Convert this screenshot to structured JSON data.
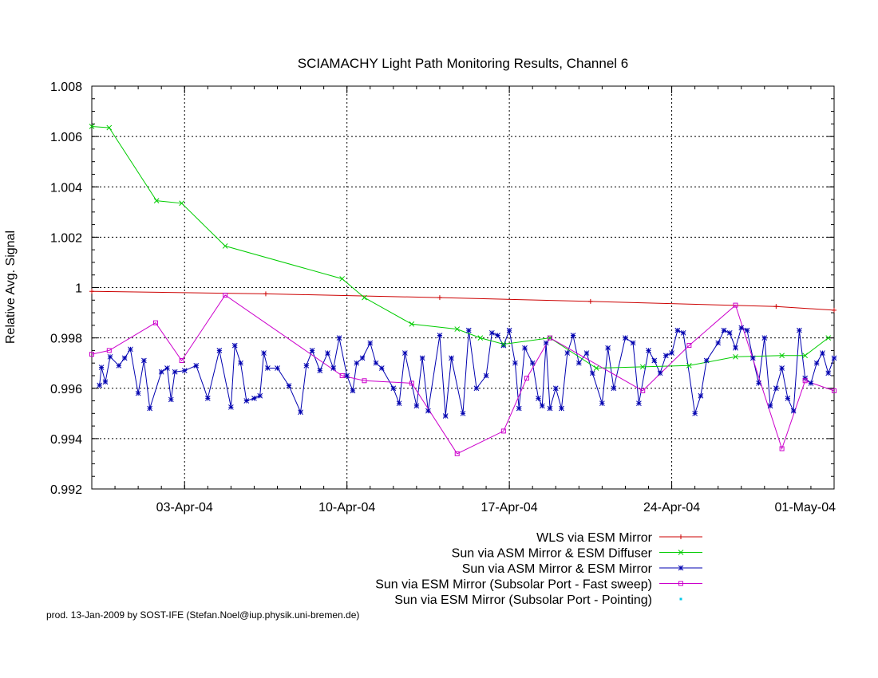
{
  "chart_data": {
    "type": "line",
    "title": "SCIAMACHY Light Path Monitoring Results, Channel 6",
    "xlabel": "",
    "ylabel": "Relative Avg. Signal",
    "xlim": [
      "2004-03-30",
      "2004-05-01"
    ],
    "ylim": [
      0.992,
      1.008
    ],
    "grid": true,
    "legend_position": "bottom-right",
    "x_ticks": [
      {
        "date": "2004-04-03",
        "label": "03-Apr-04"
      },
      {
        "date": "2004-04-10",
        "label": "10-Apr-04"
      },
      {
        "date": "2004-04-17",
        "label": "17-Apr-04"
      },
      {
        "date": "2004-04-24",
        "label": "24-Apr-04"
      },
      {
        "date": "2004-05-01",
        "label": "01-May-04"
      }
    ],
    "y_ticks": [
      {
        "value": 0.992,
        "label": "0.992"
      },
      {
        "value": 0.994,
        "label": "0.994"
      },
      {
        "value": 0.996,
        "label": "0.996"
      },
      {
        "value": 0.998,
        "label": "0.998"
      },
      {
        "value": 1.0,
        "label": "1"
      },
      {
        "value": 1.002,
        "label": "1.002"
      },
      {
        "value": 1.004,
        "label": "1.004"
      },
      {
        "value": 1.006,
        "label": "1.006"
      },
      {
        "value": 1.008,
        "label": "1.008"
      }
    ],
    "series": [
      {
        "name": "WLS via ESM Mirror",
        "color": "#cc0000",
        "marker": "plus",
        "points": [
          [
            "2004-03-30T00:00",
            0.99985
          ],
          [
            "2004-04-06T12:00",
            0.99975
          ],
          [
            "2004-04-14T00:00",
            0.9996
          ],
          [
            "2004-04-20T12:00",
            0.99945
          ],
          [
            "2004-04-28T12:00",
            0.99925
          ],
          [
            "2004-05-01T00:00",
            0.9991
          ]
        ]
      },
      {
        "name": "Sun via ASM Mirror & ESM Diffuser",
        "color": "#00cc00",
        "marker": "cross",
        "points": [
          [
            "2004-03-30T00:00",
            1.0064
          ],
          [
            "2004-03-30T18:00",
            1.00635
          ],
          [
            "2004-04-01T19:00",
            1.00345
          ],
          [
            "2004-04-02T21:00",
            1.00335
          ],
          [
            "2004-04-04T18:00",
            1.00165
          ],
          [
            "2004-04-09T19:00",
            1.00035
          ],
          [
            "2004-04-10T18:00",
            0.9996
          ],
          [
            "2004-04-12T19:00",
            0.99855
          ],
          [
            "2004-04-14T18:00",
            0.99835
          ],
          [
            "2004-04-15T18:00",
            0.998
          ],
          [
            "2004-04-16T18:00",
            0.99775
          ],
          [
            "2004-04-18T18:00",
            0.998
          ],
          [
            "2004-04-20T18:00",
            0.9968
          ],
          [
            "2004-04-22T18:00",
            0.99685
          ],
          [
            "2004-04-24T18:00",
            0.9969
          ],
          [
            "2004-04-26T18:00",
            0.99725
          ],
          [
            "2004-04-28T18:00",
            0.9973
          ],
          [
            "2004-04-29T18:00",
            0.9973
          ],
          [
            "2004-04-30T18:00",
            0.998
          ]
        ]
      },
      {
        "name": "Sun via ASM Mirror & ESM Mirror",
        "color": "#0000b0",
        "marker": "star",
        "points": [
          [
            "2004-03-30T08:00",
            0.99612
          ],
          [
            "2004-03-30T10:00",
            0.99683
          ],
          [
            "2004-03-30T14:00",
            0.99625
          ],
          [
            "2004-03-30T19:00",
            0.99725
          ],
          [
            "2004-03-31T04:00",
            0.9969
          ],
          [
            "2004-03-31T10:00",
            0.9972
          ],
          [
            "2004-03-31T16:00",
            0.99755
          ],
          [
            "2004-04-01T00:00",
            0.9958
          ],
          [
            "2004-04-01T06:00",
            0.9971
          ],
          [
            "2004-04-01T12:00",
            0.9952
          ],
          [
            "2004-04-02T00:00",
            0.99665
          ],
          [
            "2004-04-02T06:00",
            0.9968
          ],
          [
            "2004-04-02T10:00",
            0.99555
          ],
          [
            "2004-04-02T14:00",
            0.99665
          ],
          [
            "2004-04-03T00:00",
            0.9967
          ],
          [
            "2004-04-03T12:00",
            0.9969
          ],
          [
            "2004-04-04T00:00",
            0.9956
          ],
          [
            "2004-04-04T12:00",
            0.9975
          ],
          [
            "2004-04-05T00:00",
            0.99525
          ],
          [
            "2004-04-05T04:00",
            0.9977
          ],
          [
            "2004-04-05T10:00",
            0.997
          ],
          [
            "2004-04-05T16:00",
            0.9955
          ],
          [
            "2004-04-06T00:00",
            0.9956
          ],
          [
            "2004-04-06T06:00",
            0.9957
          ],
          [
            "2004-04-06T10:00",
            0.9974
          ],
          [
            "2004-04-06T14:00",
            0.9968
          ],
          [
            "2004-04-07T00:00",
            0.9968
          ],
          [
            "2004-04-07T12:00",
            0.9961
          ],
          [
            "2004-04-08T00:00",
            0.99505
          ],
          [
            "2004-04-08T06:00",
            0.9969
          ],
          [
            "2004-04-08T12:00",
            0.9975
          ],
          [
            "2004-04-08T20:00",
            0.9967
          ],
          [
            "2004-04-09T04:00",
            0.9974
          ],
          [
            "2004-04-09T10:00",
            0.9968
          ],
          [
            "2004-04-09T16:00",
            0.998
          ],
          [
            "2004-04-10T00:00",
            0.9965
          ],
          [
            "2004-04-10T06:00",
            0.9959
          ],
          [
            "2004-04-10T10:00",
            0.997
          ],
          [
            "2004-04-10T16:00",
            0.9972
          ],
          [
            "2004-04-11T00:00",
            0.9978
          ],
          [
            "2004-04-11T06:00",
            0.997
          ],
          [
            "2004-04-11T12:00",
            0.9968
          ],
          [
            "2004-04-12T00:00",
            0.996
          ],
          [
            "2004-04-12T06:00",
            0.9954
          ],
          [
            "2004-04-12T12:00",
            0.9974
          ],
          [
            "2004-04-13T00:00",
            0.9953
          ],
          [
            "2004-04-13T06:00",
            0.9972
          ],
          [
            "2004-04-13T12:00",
            0.9951
          ],
          [
            "2004-04-14T00:00",
            0.9981
          ],
          [
            "2004-04-14T06:00",
            0.9949
          ],
          [
            "2004-04-14T12:00",
            0.9972
          ],
          [
            "2004-04-15T00:00",
            0.995
          ],
          [
            "2004-04-15T06:00",
            0.9983
          ],
          [
            "2004-04-15T14:00",
            0.996
          ],
          [
            "2004-04-16T00:00",
            0.9965
          ],
          [
            "2004-04-16T06:00",
            0.9982
          ],
          [
            "2004-04-16T12:00",
            0.9981
          ],
          [
            "2004-04-16T18:00",
            0.9977
          ],
          [
            "2004-04-17T00:00",
            0.9983
          ],
          [
            "2004-04-17T06:00",
            0.997
          ],
          [
            "2004-04-17T10:00",
            0.9952
          ],
          [
            "2004-04-17T16:00",
            0.9976
          ],
          [
            "2004-04-18T00:00",
            0.997
          ],
          [
            "2004-04-18T06:00",
            0.9956
          ],
          [
            "2004-04-18T10:00",
            0.9953
          ],
          [
            "2004-04-18T14:00",
            0.9978
          ],
          [
            "2004-04-18T18:00",
            0.9952
          ],
          [
            "2004-04-19T00:00",
            0.996
          ],
          [
            "2004-04-19T06:00",
            0.9952
          ],
          [
            "2004-04-19T12:00",
            0.9974
          ],
          [
            "2004-04-19T18:00",
            0.9981
          ],
          [
            "2004-04-20T00:00",
            0.997
          ],
          [
            "2004-04-20T08:00",
            0.9974
          ],
          [
            "2004-04-20T14:00",
            0.9966
          ],
          [
            "2004-04-21T00:00",
            0.9954
          ],
          [
            "2004-04-21T06:00",
            0.9976
          ],
          [
            "2004-04-21T12:00",
            0.996
          ],
          [
            "2004-04-22T00:00",
            0.998
          ],
          [
            "2004-04-22T08:00",
            0.9978
          ],
          [
            "2004-04-22T14:00",
            0.9954
          ],
          [
            "2004-04-23T00:00",
            0.9975
          ],
          [
            "2004-04-23T06:00",
            0.9971
          ],
          [
            "2004-04-23T12:00",
            0.9966
          ],
          [
            "2004-04-23T18:00",
            0.9973
          ],
          [
            "2004-04-24T00:00",
            0.9974
          ],
          [
            "2004-04-24T06:00",
            0.9983
          ],
          [
            "2004-04-24T12:00",
            0.9982
          ],
          [
            "2004-04-25T00:00",
            0.995
          ],
          [
            "2004-04-25T06:00",
            0.9957
          ],
          [
            "2004-04-25T12:00",
            0.9971
          ],
          [
            "2004-04-26T00:00",
            0.9978
          ],
          [
            "2004-04-26T06:00",
            0.9983
          ],
          [
            "2004-04-26T12:00",
            0.9982
          ],
          [
            "2004-04-26T18:00",
            0.9976
          ],
          [
            "2004-04-27T00:00",
            0.9984
          ],
          [
            "2004-04-27T06:00",
            0.9983
          ],
          [
            "2004-04-27T12:00",
            0.9972
          ],
          [
            "2004-04-27T18:00",
            0.9962
          ],
          [
            "2004-04-28T00:00",
            0.998
          ],
          [
            "2004-04-28T06:00",
            0.9953
          ],
          [
            "2004-04-28T12:00",
            0.996
          ],
          [
            "2004-04-28T18:00",
            0.9968
          ],
          [
            "2004-04-29T00:00",
            0.9956
          ],
          [
            "2004-04-29T06:00",
            0.9951
          ],
          [
            "2004-04-29T12:00",
            0.9983
          ],
          [
            "2004-04-29T18:00",
            0.9964
          ],
          [
            "2004-04-30T00:00",
            0.9962
          ],
          [
            "2004-04-30T06:00",
            0.997
          ],
          [
            "2004-04-30T12:00",
            0.9974
          ],
          [
            "2004-04-30T18:00",
            0.9966
          ],
          [
            "2004-05-01T00:00",
            0.9972
          ]
        ]
      },
      {
        "name": "Sun via ESM Mirror (Subsolar Port - Fast sweep)",
        "color": "#cc00cc",
        "marker": "square",
        "points": [
          [
            "2004-03-30T00:00",
            0.99735
          ],
          [
            "2004-03-30T18:00",
            0.9975
          ],
          [
            "2004-04-01T18:00",
            0.9986
          ],
          [
            "2004-04-02T21:00",
            0.9971
          ],
          [
            "2004-04-04T18:00",
            0.9997
          ],
          [
            "2004-04-09T19:00",
            0.9965
          ],
          [
            "2004-04-10T18:00",
            0.9963
          ],
          [
            "2004-04-12T19:00",
            0.9962
          ],
          [
            "2004-04-14T18:00",
            0.9934
          ],
          [
            "2004-04-16T18:00",
            0.9943
          ],
          [
            "2004-04-17T18:00",
            0.9964
          ],
          [
            "2004-04-18T18:00",
            0.998
          ],
          [
            "2004-04-22T18:00",
            0.9959
          ],
          [
            "2004-04-24T18:00",
            0.9977
          ],
          [
            "2004-04-26T18:00",
            0.9993
          ],
          [
            "2004-04-28T18:00",
            0.9936
          ],
          [
            "2004-04-29T18:00",
            0.9963
          ],
          [
            "2004-05-01T00:00",
            0.9959
          ]
        ]
      },
      {
        "name": "Sun via ESM Mirror (Subsolar Port - Pointing)",
        "color": "#00c8e8",
        "marker": "dot",
        "points": []
      }
    ]
  },
  "footer": "prod. 13-Jan-2009 by SOST-IFE (Stefan.Noel@iup.physik.uni-bremen.de)"
}
